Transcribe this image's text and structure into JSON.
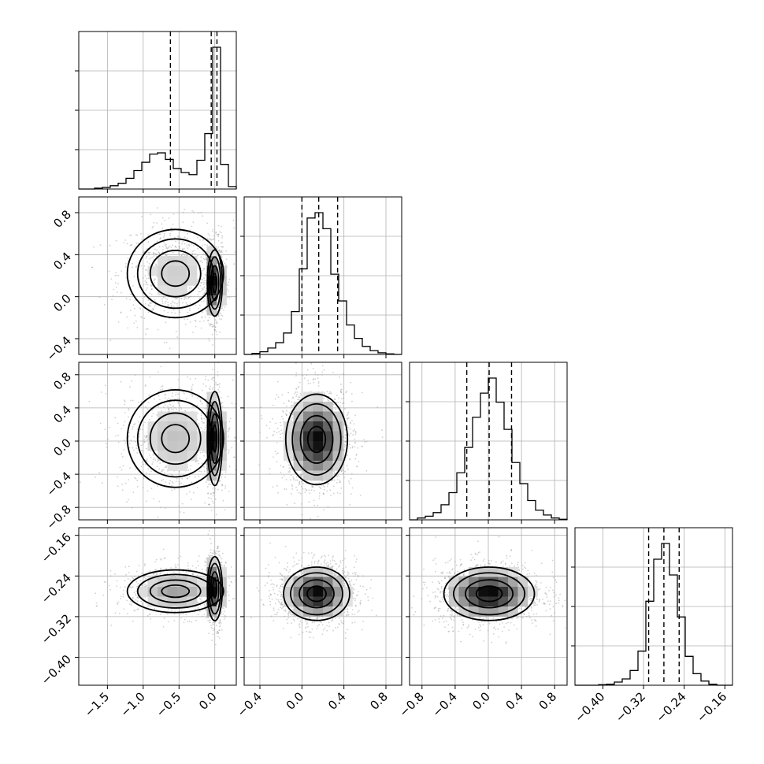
{
  "chart_data": {
    "type": "corner",
    "description_free": true,
    "params": [
      {
        "range": [
          -1.9,
          0.3
        ],
        "ticks": [
          -1.5,
          -1.0,
          -0.5,
          0.0
        ],
        "tick_labels": [
          "−1.5",
          "−1.0",
          "−0.5",
          "0.0"
        ],
        "quantiles": [
          -0.62,
          -0.05,
          0.03
        ]
      },
      {
        "range": [
          -0.55,
          0.95
        ],
        "ticks": [
          -0.4,
          0.0,
          0.4,
          0.8
        ],
        "tick_labels": [
          "−0.4",
          "0.0",
          "0.4",
          "0.8"
        ],
        "quantiles": [
          0.0,
          0.16,
          0.34
        ]
      },
      {
        "range": [
          -0.95,
          0.95
        ],
        "ticks": [
          -0.8,
          -0.4,
          0.0,
          0.4,
          0.8
        ],
        "tick_labels": [
          "−0.8",
          "−0.4",
          "0.0",
          "0.4",
          "0.8"
        ],
        "quantiles": [
          -0.26,
          0.01,
          0.28
        ]
      },
      {
        "range": [
          -0.455,
          -0.145
        ],
        "ticks": [
          -0.4,
          -0.32,
          -0.24,
          -0.16
        ],
        "tick_labels": [
          "−0.40",
          "−0.32",
          "−0.24",
          "−0.16"
        ],
        "quantiles": [
          -0.31,
          -0.28,
          -0.25
        ]
      }
    ],
    "histograms": [
      {
        "bins": [
          -1.9,
          -1.79,
          -1.68,
          -1.57,
          -1.46,
          -1.35,
          -1.24,
          -1.13,
          -1.02,
          -0.91,
          -0.8,
          -0.69,
          -0.58,
          -0.47,
          -0.36,
          -0.25,
          -0.14,
          -0.03,
          0.08,
          0.19,
          0.3
        ],
        "counts": [
          0,
          0,
          2,
          4,
          8,
          14,
          26,
          45,
          65,
          85,
          88,
          72,
          50,
          40,
          35,
          70,
          135,
          345,
          60,
          6
        ]
      },
      {
        "bins": [
          -0.55,
          -0.475,
          -0.4,
          -0.325,
          -0.25,
          -0.175,
          -0.1,
          -0.025,
          0.05,
          0.125,
          0.2,
          0.275,
          0.35,
          0.425,
          0.5,
          0.575,
          0.65,
          0.725,
          0.8,
          0.875,
          0.95
        ],
        "counts": [
          0,
          2,
          5,
          12,
          22,
          40,
          80,
          160,
          255,
          265,
          235,
          150,
          100,
          55,
          30,
          15,
          7,
          3,
          1,
          0
        ]
      },
      {
        "bins": [
          -0.95,
          -0.855,
          -0.76,
          -0.665,
          -0.57,
          -0.475,
          -0.38,
          -0.285,
          -0.19,
          -0.095,
          0.0,
          0.095,
          0.19,
          0.285,
          0.38,
          0.475,
          0.57,
          0.665,
          0.76,
          0.855,
          0.95
        ],
        "counts": [
          0,
          3,
          6,
          12,
          25,
          45,
          78,
          120,
          170,
          210,
          235,
          195,
          150,
          95,
          60,
          32,
          16,
          8,
          3,
          1
        ]
      },
      {
        "bins": [
          -0.455,
          -0.4395,
          -0.424,
          -0.4085,
          -0.393,
          -0.3775,
          -0.362,
          -0.3465,
          -0.331,
          -0.3155,
          -0.3,
          -0.2845,
          -0.269,
          -0.2535,
          -0.238,
          -0.2225,
          -0.207,
          -0.1915,
          -0.176,
          -0.1605,
          -0.145
        ],
        "counts": [
          0,
          0,
          0,
          1,
          2,
          6,
          12,
          28,
          65,
          160,
          240,
          270,
          210,
          130,
          55,
          22,
          8,
          2,
          0,
          0
        ]
      }
    ],
    "joint": [
      {
        "x": 0,
        "y": 1,
        "modes": [
          {
            "cx": -0.55,
            "cy": 0.22,
            "sx": 0.32,
            "sy": 0.2,
            "w": 0.55
          },
          {
            "cx": 0.0,
            "cy": 0.13,
            "sx": 0.05,
            "sy": 0.15,
            "w": 0.45
          }
        ]
      },
      {
        "x": 0,
        "y": 2,
        "modes": [
          {
            "cx": -0.55,
            "cy": 0.03,
            "sx": 0.32,
            "sy": 0.28,
            "w": 0.55
          },
          {
            "cx": 0.0,
            "cy": 0.03,
            "sx": 0.05,
            "sy": 0.27,
            "w": 0.45
          }
        ]
      },
      {
        "x": 0,
        "y": 3,
        "modes": [
          {
            "cx": -0.55,
            "cy": -0.27,
            "sx": 0.32,
            "sy": 0.02,
            "w": 0.55
          },
          {
            "cx": 0.0,
            "cy": -0.265,
            "sx": 0.05,
            "sy": 0.03,
            "w": 0.45
          }
        ]
      },
      {
        "x": 1,
        "y": 2,
        "modes": [
          {
            "cx": 0.14,
            "cy": 0.02,
            "sx": 0.14,
            "sy": 0.26,
            "w": 1.0
          }
        ]
      },
      {
        "x": 1,
        "y": 3,
        "modes": [
          {
            "cx": 0.14,
            "cy": -0.275,
            "sx": 0.15,
            "sy": 0.025,
            "w": 1.0
          }
        ]
      },
      {
        "x": 2,
        "y": 3,
        "modes": [
          {
            "cx": 0.01,
            "cy": -0.275,
            "sx": 0.26,
            "sy": 0.025,
            "w": 1.0
          }
        ]
      }
    ],
    "grid": true,
    "title": "",
    "xlabel": "",
    "ylabel": ""
  }
}
